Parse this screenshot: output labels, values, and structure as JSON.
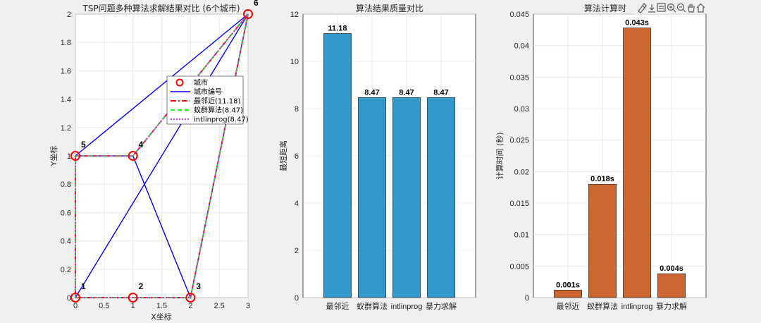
{
  "toolbar_icons": [
    "brush-icon",
    "export-icon",
    "datatip-icon",
    "zoom-in-icon",
    "zoom-out-icon",
    "pan-icon",
    "home-icon"
  ],
  "chart_data": [
    {
      "type": "line",
      "title": "TSP问题多种算法求解结果对比 (6个城市)",
      "xlabel": "X坐标",
      "ylabel": "Y坐标",
      "xlim": [
        0,
        3
      ],
      "ylim": [
        0,
        2
      ],
      "xticks": [
        0,
        0.5,
        1,
        1.5,
        2,
        2.5,
        3
      ],
      "yticks": [
        0,
        0.2,
        0.4,
        0.6,
        0.8,
        1,
        1.2,
        1.4,
        1.6,
        1.8,
        2
      ],
      "grid": true,
      "cities": [
        {
          "label": "1",
          "x": 0,
          "y": 0
        },
        {
          "label": "2",
          "x": 1,
          "y": 0
        },
        {
          "label": "3",
          "x": 2,
          "y": 0
        },
        {
          "label": "4",
          "x": 1,
          "y": 1
        },
        {
          "label": "5",
          "x": 0,
          "y": 1
        },
        {
          "label": "6",
          "x": 3,
          "y": 2
        }
      ],
      "series": [
        {
          "name": "城市",
          "style": "marker",
          "color": "#ff0000"
        },
        {
          "name": "城市编号",
          "style": "solid",
          "color": "#0000ff",
          "x": [
            0,
            3,
            0,
            1,
            2,
            3,
            0
          ],
          "y": [
            0,
            2,
            1,
            1,
            0,
            2,
            0
          ]
        },
        {
          "name": "最邻近(11.18)",
          "style": "dashdot",
          "color": "#ff0000",
          "x": [
            0,
            1,
            2,
            3,
            1,
            0,
            0
          ],
          "y": [
            0,
            0,
            0,
            2,
            1,
            1,
            0
          ]
        },
        {
          "name": "蚁群算法(8.47)",
          "style": "dashed",
          "color": "#00ff00",
          "x": [
            0,
            1,
            2,
            3,
            1,
            0,
            0
          ],
          "y": [
            0,
            0,
            0,
            2,
            1,
            1,
            0
          ]
        },
        {
          "name": "intlinprog(8.47)",
          "style": "dotted",
          "color": "#cc33cc",
          "x": [
            0,
            1,
            2,
            3,
            1,
            0,
            0
          ],
          "y": [
            0,
            0,
            0,
            2,
            1,
            1,
            0
          ]
        }
      ],
      "legend": "top-right"
    },
    {
      "type": "bar",
      "title": "算法结果质量对比",
      "xlabel": "",
      "ylabel": "最短距离",
      "categories": [
        "最邻近",
        "蚁群算法",
        "intlinprog",
        "暴力求解"
      ],
      "values": [
        11.18,
        8.47,
        8.47,
        8.47
      ],
      "data_labels": [
        "11.18",
        "8.47",
        "8.47",
        "8.47"
      ],
      "ylim": [
        0,
        12
      ],
      "yticks": [
        0,
        2,
        4,
        6,
        8,
        10,
        12
      ],
      "color": "#3399cc",
      "grid": true
    },
    {
      "type": "bar",
      "title": "算法计算时",
      "xlabel": "",
      "ylabel": "计算时间 (秒)",
      "categories": [
        "最邻近",
        "蚁群算法",
        "intlinprog",
        "暴力求解"
      ],
      "values": [
        0.0012,
        0.018,
        0.0428,
        0.0038
      ],
      "data_labels": [
        "0.001s",
        "0.018s",
        "0.043s",
        "0.004s"
      ],
      "ylim": [
        0,
        0.045
      ],
      "yticks": [
        "0",
        "0.005",
        "0.01",
        "0.015",
        "0.02",
        "0.025",
        "0.03",
        "0.035",
        "0.04",
        "0.045"
      ],
      "color": "#cc6633",
      "grid": true
    }
  ]
}
